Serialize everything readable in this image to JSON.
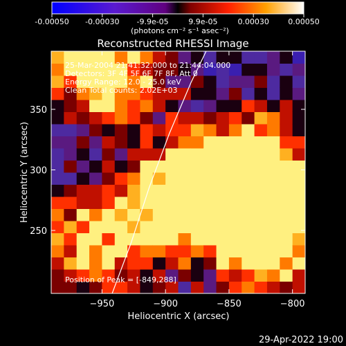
{
  "colorbar": {
    "ticks": [
      "-0.00050",
      "-0.00030",
      "-9.9e-05",
      "9.9e-05",
      "0.00030",
      "0.00050"
    ],
    "unit_label": "(photons cm⁻² s⁻¹ asec⁻²)",
    "range": [
      -0.0005,
      0.0005
    ]
  },
  "chart_data": {
    "type": "heatmap",
    "title": "Reconstructed RHESSI Image",
    "xlabel": "Heliocentric X (arcsec)",
    "ylabel": "Heliocentric Y (arcsec)",
    "xlim": [
      -990,
      -790
    ],
    "ylim": [
      198,
      398
    ],
    "xticks": [
      -950,
      -900,
      -850,
      -800
    ],
    "yticks": [
      250,
      300,
      350
    ],
    "annotations": [
      "25-Mar-2004 21:41:32.000 to 21:44:04.000",
      "Detectors: 3F 4F 5F 6F 7F 8F, Att 0",
      "Energy Range: 12.0 - 25.0 keV",
      "Clean     Total counts: 2.02E+03"
    ],
    "peak_text": "Position of Peak = [-849,288]",
    "peak": [
      -849,
      288
    ],
    "limb_curve": [
      [
        -942,
        198
      ],
      [
        -927,
        240
      ],
      [
        -913,
        285
      ],
      [
        -897,
        330
      ],
      [
        -880,
        372
      ],
      [
        -868,
        398
      ]
    ],
    "bright_regions": [
      {
        "x": -845,
        "y": 295,
        "level": 1.0
      },
      {
        "x": -820,
        "y": 300,
        "level": 0.8
      },
      {
        "x": -880,
        "y": 285,
        "level": 0.7
      },
      {
        "x": -910,
        "y": 260,
        "level": 0.6
      },
      {
        "x": -965,
        "y": 235,
        "level": 0.75
      },
      {
        "x": -960,
        "y": 385,
        "level": 0.7
      },
      {
        "x": -930,
        "y": 375,
        "level": 0.5
      },
      {
        "x": -810,
        "y": 250,
        "level": 0.6
      },
      {
        "x": -830,
        "y": 225,
        "level": 0.5
      }
    ]
  },
  "footer": {
    "timestamp": "29-Apr-2022 19:00"
  }
}
